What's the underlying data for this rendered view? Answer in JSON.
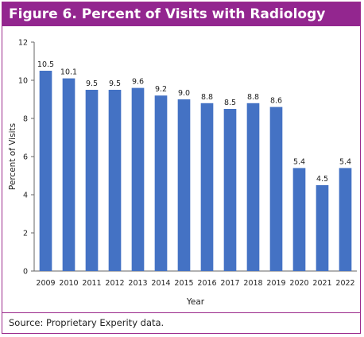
{
  "title": "Figure 6. Percent of Visits with Radiology",
  "source": "Source: Proprietary Experity data.",
  "colors": {
    "bar": "#4472c4",
    "accent": "#93268f"
  },
  "chart_data": {
    "type": "bar",
    "title": "Figure 6. Percent of Visits with Radiology",
    "xlabel": "Year",
    "ylabel": "Percent of Visits",
    "ylim": [
      0,
      12
    ],
    "yticks": [
      0,
      2,
      4,
      6,
      8,
      10,
      12
    ],
    "grid": false,
    "categories": [
      "2009",
      "2010",
      "2011",
      "2012",
      "2013",
      "2014",
      "2015",
      "2016",
      "2017",
      "2018",
      "2019",
      "2020",
      "2021",
      "2022"
    ],
    "values": [
      10.5,
      10.1,
      9.5,
      9.5,
      9.6,
      9.2,
      9.0,
      8.8,
      8.5,
      8.8,
      8.6,
      5.4,
      4.5,
      5.4
    ],
    "labels": [
      "10.5",
      "10.1",
      "9.5",
      "9.5",
      "9.6",
      "9.2",
      "9.0",
      "8.8",
      "8.5",
      "8.8",
      "8.6",
      "5.4",
      "4.5",
      "5.4"
    ]
  }
}
